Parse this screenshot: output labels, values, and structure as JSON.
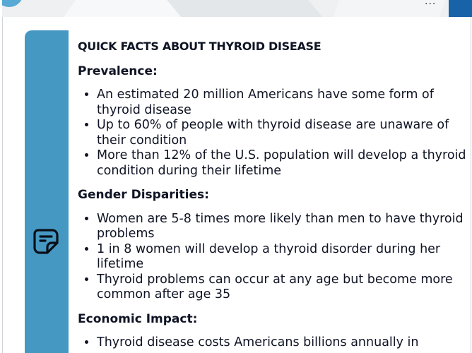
{
  "header": {
    "more_label": "..."
  },
  "card": {
    "icon": "sticky-note-icon",
    "accent_color": "#4598c2",
    "title": "QUICK FACTS ABOUT THYROID DISEASE",
    "sections": [
      {
        "heading": "Prevalence:",
        "items": [
          "An estimated 20 million Americans have some form of thyroid disease",
          "Up to 60% of people with thyroid disease are unaware of their condition",
          "More than 12% of the U.S. population will develop a thyroid condition during their lifetime"
        ]
      },
      {
        "heading": "Gender Disparities:",
        "items": [
          "Women are 5-8 times more likely than men to have thyroid problems",
          "1 in 8 women will develop a thyroid disorder during her lifetime",
          "Thyroid problems can occur at any age but become more common after age 35"
        ]
      },
      {
        "heading": "Economic Impact:",
        "items": [
          "Thyroid disease costs Americans billions annually in"
        ]
      }
    ]
  }
}
